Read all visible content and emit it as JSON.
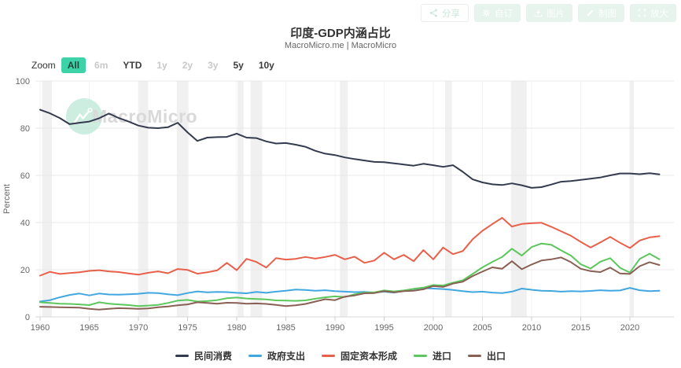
{
  "header": {
    "title": "印度-GDP内涵占比",
    "subtitle": "MacroMicro.me | MacroMicro"
  },
  "toolbar": {
    "buttons": [
      {
        "name": "share-button",
        "label": "分享",
        "icon": "share-icon",
        "style": "outline"
      },
      {
        "name": "customize-button",
        "label": "自订",
        "icon": "gear-icon",
        "style": "solid"
      },
      {
        "name": "image-button",
        "label": "图片",
        "icon": "download-icon",
        "style": "solid"
      },
      {
        "name": "draw-button",
        "label": "制图",
        "icon": "pencil-icon",
        "style": "solid"
      },
      {
        "name": "enlarge-button",
        "label": "放大",
        "icon": "expand-icon",
        "style": "solid"
      }
    ]
  },
  "zoom_bar": {
    "label": "Zoom",
    "options": [
      {
        "label": "All",
        "state": "active"
      },
      {
        "label": "6m",
        "state": "disabled"
      },
      {
        "label": "YTD",
        "state": "enabled"
      },
      {
        "label": "1y",
        "state": "disabled"
      },
      {
        "label": "2y",
        "state": "disabled"
      },
      {
        "label": "3y",
        "state": "disabled"
      },
      {
        "label": "5y",
        "state": "enabled"
      },
      {
        "label": "10y",
        "state": "enabled"
      }
    ]
  },
  "watermark": {
    "text": "MacroMicro",
    "circle_color": "#bfe9d8",
    "text_color": "#d9d9d9"
  },
  "colors": {
    "grid": "#e8e8e8",
    "vgrid": "#f3f3f3",
    "axis_line": "#d9d9d9",
    "tick": "#cccccc",
    "tick_label": "#666666",
    "recession_band": "rgba(140,140,140,0.13)"
  },
  "chart_data": {
    "type": "line",
    "title": "印度-GDP内涵占比",
    "xlabel": "",
    "ylabel": "Percent",
    "ylim": [
      0,
      100
    ],
    "yticks": [
      0,
      20,
      40,
      60,
      80,
      100
    ],
    "xticks": [
      1960,
      1965,
      1970,
      1975,
      1980,
      1985,
      1990,
      1995,
      2000,
      2005,
      2010,
      2015,
      2020
    ],
    "xlim": [
      1959.5,
      2024.4
    ],
    "grid": true,
    "legend_position": "bottom",
    "recession_bands": [
      [
        1960.2,
        1961.2
      ],
      [
        1970.0,
        1971.0
      ],
      [
        1973.9,
        1975.1
      ],
      [
        1980.1,
        1980.7
      ],
      [
        1981.4,
        1982.6
      ],
      [
        1990.5,
        1991.3
      ],
      [
        2001.2,
        2001.9
      ],
      [
        2007.9,
        2009.5
      ],
      [
        2019.95,
        2020.4
      ]
    ],
    "x": [
      1960,
      1961,
      1962,
      1963,
      1964,
      1965,
      1966,
      1967,
      1968,
      1969,
      1970,
      1971,
      1972,
      1973,
      1974,
      1975,
      1976,
      1977,
      1978,
      1979,
      1980,
      1981,
      1982,
      1983,
      1984,
      1985,
      1986,
      1987,
      1988,
      1989,
      1990,
      1991,
      1992,
      1993,
      1994,
      1995,
      1996,
      1997,
      1998,
      1999,
      2000,
      2001,
      2002,
      2003,
      2004,
      2005,
      2006,
      2007,
      2008,
      2009,
      2010,
      2011,
      2012,
      2013,
      2014,
      2015,
      2016,
      2017,
      2018,
      2019,
      2020,
      2021,
      2022,
      2023
    ],
    "series": [
      {
        "key": "private-consumption",
        "name": "民间消费",
        "color": "#343b4e",
        "values": [
          87.8,
          86.3,
          84.3,
          81.7,
          82.3,
          82.8,
          84.2,
          86.2,
          84.3,
          82.8,
          81.1,
          80.2,
          80.0,
          80.4,
          82.3,
          78.2,
          74.6,
          76.0,
          76.2,
          76.3,
          77.7,
          76.0,
          75.8,
          74.4,
          73.5,
          73.7,
          73.0,
          72.1,
          70.4,
          69.2,
          68.6,
          67.6,
          66.9,
          66.3,
          65.7,
          65.6,
          65.1,
          64.6,
          64.1,
          64.9,
          64.3,
          63.6,
          64.3,
          61.5,
          58.3,
          57.0,
          56.2,
          55.9,
          56.6,
          55.8,
          54.7,
          55.0,
          56.1,
          57.3,
          57.6,
          58.1,
          58.6,
          59.1,
          60.0,
          60.8,
          60.8,
          60.5,
          60.9,
          60.4
        ]
      },
      {
        "key": "government-spending",
        "name": "政府支出",
        "color": "#41a7e1",
        "values": [
          6.5,
          7.1,
          8.3,
          9.3,
          9.9,
          9.1,
          9.9,
          9.5,
          9.4,
          9.6,
          9.8,
          10.2,
          10.1,
          9.6,
          9.2,
          10.1,
          10.8,
          10.4,
          10.6,
          10.5,
          10.2,
          10.0,
          10.6,
          10.2,
          10.7,
          11.1,
          11.6,
          11.4,
          11.1,
          11.3,
          10.9,
          10.7,
          10.5,
          10.6,
          10.3,
          10.7,
          10.3,
          11.0,
          11.8,
          12.2,
          12.0,
          11.8,
          11.4,
          10.9,
          10.5,
          10.7,
          10.3,
          10.1,
          10.7,
          12.0,
          11.5,
          11.1,
          11.0,
          10.7,
          10.9,
          10.8,
          11.0,
          11.3,
          11.1,
          11.2,
          12.3,
          11.3,
          10.9,
          11.1
        ]
      },
      {
        "key": "fixed-capital-formation",
        "name": "固定资本形成",
        "color": "#e8604a",
        "values": [
          17.5,
          19.1,
          18.2,
          18.6,
          18.9,
          19.5,
          19.8,
          19.3,
          19.0,
          18.4,
          17.9,
          18.7,
          19.3,
          18.5,
          20.3,
          19.9,
          18.3,
          18.9,
          19.7,
          22.9,
          19.8,
          24.6,
          23.3,
          20.9,
          24.9,
          24.3,
          24.6,
          25.4,
          24.7,
          25.4,
          26.3,
          24.4,
          25.5,
          22.9,
          23.9,
          27.2,
          24.4,
          26.3,
          23.6,
          28.3,
          24.4,
          29.4,
          26.6,
          27.9,
          32.9,
          36.5,
          39.3,
          42.0,
          38.3,
          39.4,
          39.7,
          39.9,
          38.2,
          36.3,
          34.4,
          31.8,
          29.4,
          31.6,
          33.9,
          31.4,
          29.2,
          32.4,
          33.7,
          34.2
        ]
      },
      {
        "key": "imports",
        "name": "进口",
        "color": "#5cc75c",
        "values": [
          6.2,
          5.9,
          5.6,
          5.5,
          5.3,
          5.0,
          6.2,
          5.6,
          5.3,
          5.0,
          4.6,
          4.8,
          5.1,
          5.9,
          6.9,
          7.2,
          6.5,
          6.7,
          7.1,
          7.9,
          8.2,
          7.8,
          7.6,
          7.4,
          7.0,
          6.9,
          6.8,
          7.0,
          7.7,
          8.3,
          8.7,
          8.4,
          9.6,
          10.3,
          10.4,
          11.2,
          10.8,
          11.2,
          11.9,
          12.4,
          13.5,
          13.3,
          14.5,
          15.5,
          18.2,
          21.0,
          23.3,
          25.4,
          28.9,
          26.0,
          29.6,
          31.1,
          30.6,
          28.2,
          26.0,
          22.3,
          20.5,
          23.4,
          24.9,
          20.8,
          18.8,
          24.6,
          26.8,
          24.4
        ]
      },
      {
        "key": "exports",
        "name": "出口",
        "color": "#8a6054",
        "values": [
          4.3,
          4.2,
          4.1,
          4.0,
          3.9,
          3.4,
          3.1,
          3.4,
          3.7,
          3.6,
          3.4,
          3.6,
          4.1,
          4.4,
          4.9,
          5.3,
          6.2,
          5.9,
          5.6,
          6.0,
          5.9,
          5.6,
          5.7,
          5.5,
          5.1,
          4.6,
          4.9,
          5.5,
          6.5,
          7.5,
          7.1,
          8.6,
          9.1,
          10.0,
          10.1,
          10.9,
          10.4,
          10.9,
          11.1,
          11.7,
          13.1,
          12.7,
          14.1,
          14.9,
          17.3,
          19.2,
          21.0,
          20.4,
          23.6,
          20.2,
          22.2,
          23.9,
          24.4,
          25.2,
          23.2,
          20.4,
          19.4,
          19.0,
          20.9,
          18.4,
          18.2,
          21.5,
          23.2,
          22.0
        ]
      }
    ]
  }
}
